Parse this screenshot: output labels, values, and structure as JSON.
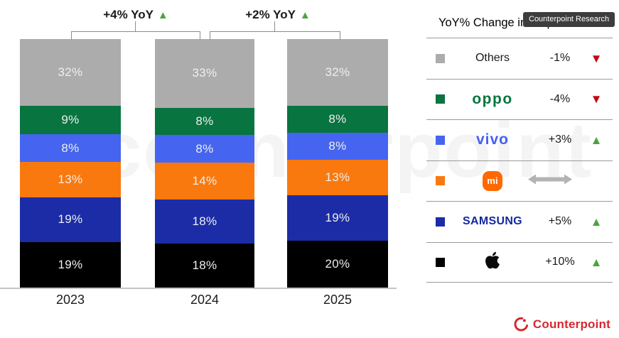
{
  "watermark": "counterpoint",
  "badge_label": "Counterpoint Research",
  "footer_logo_text": "Counterpoint",
  "chart_data": {
    "type": "bar",
    "stacked": true,
    "value_suffix": "%",
    "categories": [
      "2023",
      "2024",
      "2025"
    ],
    "series_order": "top-to-bottom",
    "series": [
      {
        "name": "Others",
        "color": "#acacac",
        "values": [
          32,
          33,
          32
        ]
      },
      {
        "name": "OPPO",
        "color": "#087440",
        "values": [
          9,
          8,
          8
        ]
      },
      {
        "name": "vivo",
        "color": "#4565f0",
        "values": [
          8,
          8,
          8
        ]
      },
      {
        "name": "Xiaomi",
        "color": "#f9790f",
        "values": [
          13,
          14,
          13
        ]
      },
      {
        "name": "Samsung",
        "color": "#1c2ca6",
        "values": [
          19,
          18,
          19
        ]
      },
      {
        "name": "Apple",
        "color": "#000000",
        "values": [
          19,
          18,
          20
        ]
      }
    ],
    "annotations": [
      {
        "label": "+4% YoY",
        "direction": "up",
        "between": [
          "2023",
          "2024"
        ]
      },
      {
        "label": "+2% YoY",
        "direction": "up",
        "between": [
          "2024",
          "2025"
        ]
      }
    ],
    "ylim": [
      0,
      100
    ],
    "grid": false,
    "legend_position": "right"
  },
  "legend": {
    "header": "YoY% Change in Shipments",
    "rows": [
      {
        "brand": "Others",
        "logo": "text",
        "logo_text": "Others",
        "color": "#acacac",
        "change": "-1%",
        "trend": "down"
      },
      {
        "brand": "OPPO",
        "logo": "oppo",
        "logo_text": "oppo",
        "color": "#087440",
        "change": "-4%",
        "trend": "down"
      },
      {
        "brand": "vivo",
        "logo": "vivo",
        "logo_text": "vivo",
        "color": "#4565f0",
        "change": "+3%",
        "trend": "up"
      },
      {
        "brand": "Xiaomi",
        "logo": "mi",
        "logo_text": "mi",
        "color": "#f9790f",
        "change": "",
        "trend": "flat"
      },
      {
        "brand": "Samsung",
        "logo": "samsung",
        "logo_text": "SAMSUNG",
        "color": "#1c2ca6",
        "change": "+5%",
        "trend": "up"
      },
      {
        "brand": "Apple",
        "logo": "apple",
        "logo_text": "",
        "color": "#000000",
        "change": "+10%",
        "trend": "up"
      }
    ]
  },
  "colors": {
    "trend_up": "#4aa53c",
    "trend_down": "#c00a14",
    "trend_flat": "#b3b3b3",
    "brand_red": "#d7282f",
    "axis_line": "#c4c4c4",
    "bracket": "#8c8c8c"
  }
}
